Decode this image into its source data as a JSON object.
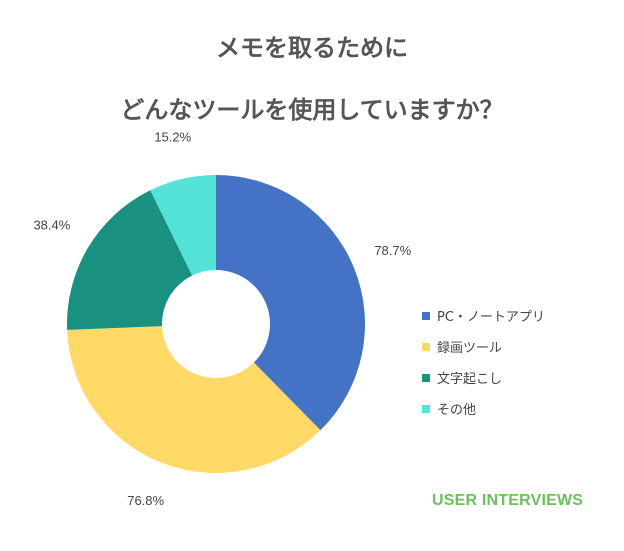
{
  "title": {
    "line1": "メモを取るために",
    "line2": "どんなツールを使用していますか？"
  },
  "brand": "USER INTERVIEWS",
  "chart_data": {
    "type": "pie",
    "donut": true,
    "categories": [
      "PC・ノートアプリ",
      "録画ツール",
      "文字起こし",
      "その他"
    ],
    "values": [
      78.7,
      76.8,
      38.4,
      15.2
    ],
    "labels": [
      "78.7%",
      "76.8%",
      "38.4%",
      "15.2%"
    ],
    "colors": [
      "#4472c4",
      "#ffd966",
      "#1a9080",
      "#54e3d6"
    ],
    "legend_position": "right"
  }
}
